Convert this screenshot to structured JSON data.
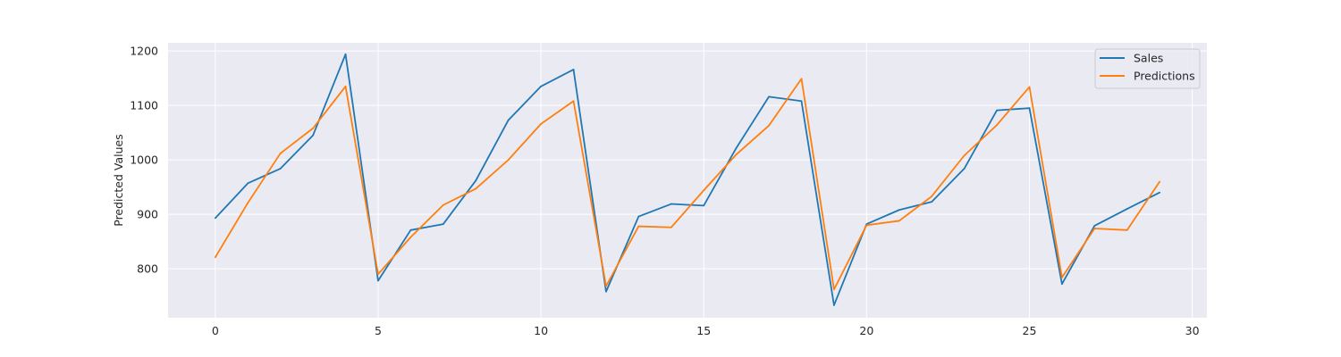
{
  "chart_data": {
    "type": "line",
    "title": "",
    "xlabel": "",
    "ylabel": "Predicted Values",
    "xlim": [
      -1.45,
      30.45
    ],
    "ylim": [
      710,
      1215
    ],
    "xticks": [
      0,
      5,
      10,
      15,
      20,
      25,
      30
    ],
    "yticks": [
      800,
      900,
      1000,
      1100,
      1200
    ],
    "grid": true,
    "legend_position": "top-right",
    "x": [
      0,
      1,
      2,
      3,
      4,
      5,
      6,
      7,
      8,
      9,
      10,
      11,
      12,
      13,
      14,
      15,
      16,
      17,
      18,
      19,
      20,
      21,
      22,
      23,
      24,
      25,
      26,
      27,
      28,
      29
    ],
    "series": [
      {
        "name": "Sales",
        "color": "#1f77b4",
        "values": [
          893,
          957,
          984,
          1045,
          1194,
          778,
          871,
          882,
          962,
          1073,
          1135,
          1166,
          758,
          896,
          919,
          916,
          1022,
          1116,
          1108,
          733,
          882,
          908,
          923,
          984,
          1091,
          1095,
          772,
          879,
          910,
          940
        ]
      },
      {
        "name": "Predictions",
        "color": "#ff7f0e",
        "values": [
          821,
          921,
          1012,
          1058,
          1135,
          790,
          858,
          917,
          947,
          1000,
          1066,
          1108,
          768,
          878,
          876,
          944,
          1010,
          1063,
          1149,
          762,
          880,
          888,
          933,
          1008,
          1064,
          1134,
          784,
          874,
          871,
          960
        ]
      }
    ]
  }
}
